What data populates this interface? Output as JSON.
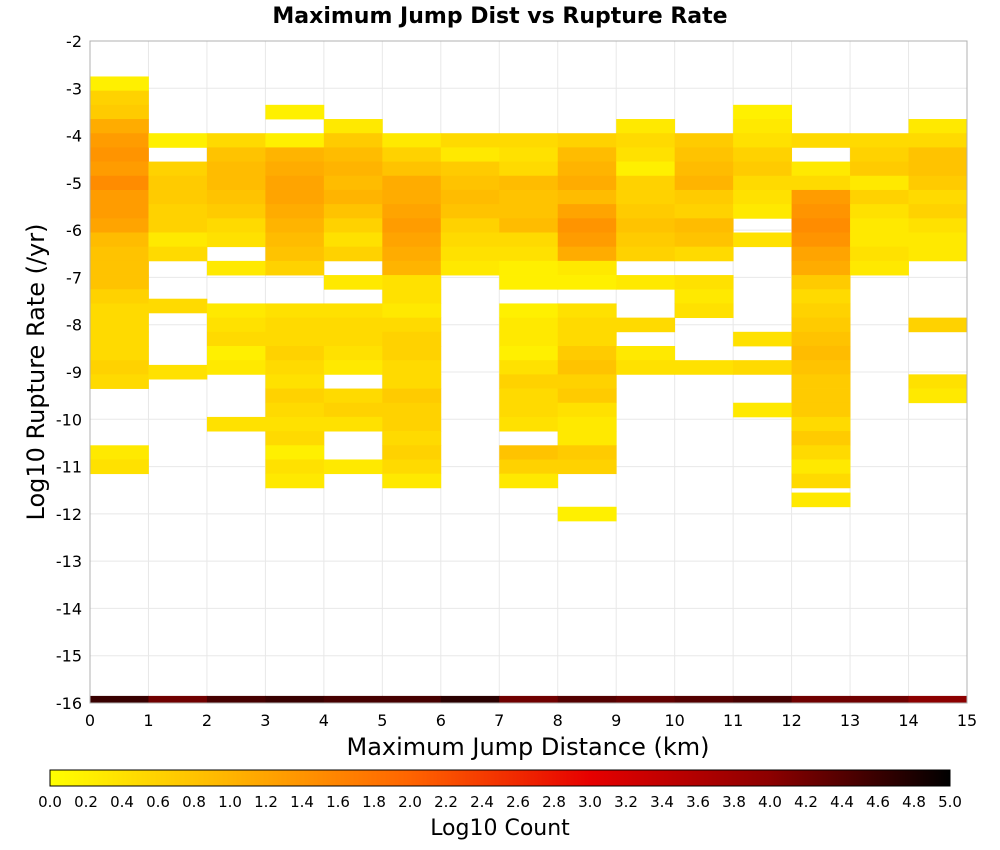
{
  "chart_data": {
    "type": "heatmap",
    "title": "Maximum Jump Dist vs Rupture Rate",
    "xlabel": "Maximum Jump Distance (km)",
    "ylabel": "Log10 Rupture Rate (/yr)",
    "xlim": [
      0,
      15
    ],
    "ylim": [
      -16,
      -2
    ],
    "x_ticks": [
      "0",
      "1",
      "2",
      "3",
      "4",
      "5",
      "6",
      "7",
      "8",
      "9",
      "10",
      "11",
      "12",
      "13",
      "14",
      "15"
    ],
    "y_ticks": [
      "-2",
      "-3",
      "-4",
      "-5",
      "-6",
      "-7",
      "-8",
      "-9",
      "-10",
      "-11",
      "-12",
      "-13",
      "-14",
      "-15",
      "-16"
    ],
    "grid": true,
    "x_bin_width": 1,
    "y_bin_width": 0.3,
    "colorbar": {
      "label": "Log10 Count",
      "range": [
        0,
        5
      ],
      "ticks": [
        "0.0",
        "0.2",
        "0.4",
        "0.6",
        "0.8",
        "1.0",
        "1.2",
        "1.4",
        "1.6",
        "1.8",
        "2.0",
        "2.2",
        "2.4",
        "2.6",
        "2.8",
        "3.0",
        "3.2",
        "3.4",
        "3.6",
        "3.8",
        "4.0",
        "4.2",
        "4.4",
        "4.6",
        "4.8",
        "5.0"
      ],
      "colors": [
        "#ffff00",
        "#ffb400",
        "#ff6400",
        "#e60000",
        "#8c0000",
        "#000000"
      ]
    },
    "bottom_row": {
      "y": -16,
      "values": [
        4.6,
        4.2,
        4.5,
        4.6,
        4.5,
        4.5,
        4.7,
        4.2,
        4.4,
        4.3,
        4.4,
        4.5,
        4.2,
        4.2,
        4.0
      ]
    },
    "cells": [
      [
        0,
        -2.9,
        0.2
      ],
      [
        0,
        -3.2,
        0.6
      ],
      [
        0,
        -3.5,
        0.7
      ],
      [
        0,
        -3.8,
        1.1
      ],
      [
        0,
        -4.1,
        1.3
      ],
      [
        0,
        -4.4,
        1.4
      ],
      [
        0,
        -4.7,
        1.3
      ],
      [
        0,
        -5.0,
        1.5
      ],
      [
        0,
        -5.3,
        1.3
      ],
      [
        0,
        -5.6,
        1.3
      ],
      [
        0,
        -5.9,
        1.2
      ],
      [
        0,
        -6.2,
        0.9
      ],
      [
        0,
        -6.5,
        0.8
      ],
      [
        0,
        -6.8,
        0.8
      ],
      [
        0,
        -7.1,
        0.8
      ],
      [
        0,
        -7.4,
        0.6
      ],
      [
        0,
        -7.7,
        0.5
      ],
      [
        0,
        -8.0,
        0.5
      ],
      [
        0,
        -8.3,
        0.5
      ],
      [
        0,
        -8.6,
        0.5
      ],
      [
        0,
        -8.9,
        0.6
      ],
      [
        0,
        -9.2,
        0.5
      ],
      [
        0,
        -10.7,
        0.3
      ],
      [
        0,
        -11.0,
        0.4
      ],
      [
        1,
        -4.1,
        0.2
      ],
      [
        1,
        -4.7,
        0.6
      ],
      [
        1,
        -5.0,
        0.7
      ],
      [
        1,
        -5.3,
        0.7
      ],
      [
        1,
        -5.6,
        0.6
      ],
      [
        1,
        -5.9,
        0.6
      ],
      [
        1,
        -6.2,
        0.3
      ],
      [
        1,
        -6.5,
        0.5
      ],
      [
        1,
        -7.6,
        0.5
      ],
      [
        1,
        -9.0,
        0.4
      ],
      [
        2,
        -4.1,
        0.5
      ],
      [
        2,
        -4.4,
        0.8
      ],
      [
        2,
        -4.7,
        0.9
      ],
      [
        2,
        -5.0,
        0.9
      ],
      [
        2,
        -5.3,
        0.8
      ],
      [
        2,
        -5.6,
        0.7
      ],
      [
        2,
        -5.9,
        0.5
      ],
      [
        2,
        -6.2,
        0.4
      ],
      [
        2,
        -6.8,
        0.3
      ],
      [
        2,
        -7.7,
        0.3
      ],
      [
        2,
        -8.0,
        0.4
      ],
      [
        2,
        -8.3,
        0.5
      ],
      [
        2,
        -8.6,
        0.2
      ],
      [
        2,
        -8.9,
        0.3
      ],
      [
        2,
        -10.1,
        0.4
      ],
      [
        3,
        -3.5,
        0.2
      ],
      [
        3,
        -4.1,
        0.2
      ],
      [
        3,
        -4.4,
        1.0
      ],
      [
        3,
        -4.7,
        1.1
      ],
      [
        3,
        -5.0,
        1.2
      ],
      [
        3,
        -5.3,
        1.2
      ],
      [
        3,
        -5.6,
        1.1
      ],
      [
        3,
        -5.9,
        1.0
      ],
      [
        3,
        -6.2,
        0.9
      ],
      [
        3,
        -6.5,
        0.8
      ],
      [
        3,
        -6.8,
        0.6
      ],
      [
        3,
        -7.7,
        0.4
      ],
      [
        3,
        -8.0,
        0.5
      ],
      [
        3,
        -8.3,
        0.5
      ],
      [
        3,
        -8.6,
        0.6
      ],
      [
        3,
        -8.9,
        0.5
      ],
      [
        3,
        -9.2,
        0.4
      ],
      [
        3,
        -9.5,
        0.6
      ],
      [
        3,
        -9.8,
        0.5
      ],
      [
        3,
        -10.1,
        0.4
      ],
      [
        3,
        -10.4,
        0.5
      ],
      [
        3,
        -10.7,
        0.2
      ],
      [
        3,
        -11.0,
        0.4
      ],
      [
        3,
        -11.3,
        0.3
      ],
      [
        4,
        -3.8,
        0.3
      ],
      [
        4,
        -4.1,
        0.7
      ],
      [
        4,
        -4.4,
        0.9
      ],
      [
        4,
        -4.7,
        1.0
      ],
      [
        4,
        -5.0,
        0.9
      ],
      [
        4,
        -5.3,
        1.0
      ],
      [
        4,
        -5.6,
        0.8
      ],
      [
        4,
        -5.9,
        0.6
      ],
      [
        4,
        -6.2,
        0.4
      ],
      [
        4,
        -6.5,
        0.6
      ],
      [
        4,
        -7.1,
        0.3
      ],
      [
        4,
        -7.7,
        0.4
      ],
      [
        4,
        -8.0,
        0.5
      ],
      [
        4,
        -8.3,
        0.5
      ],
      [
        4,
        -8.6,
        0.4
      ],
      [
        4,
        -8.9,
        0.3
      ],
      [
        4,
        -9.5,
        0.5
      ],
      [
        4,
        -9.8,
        0.6
      ],
      [
        4,
        -10.1,
        0.4
      ],
      [
        4,
        -11.0,
        0.3
      ],
      [
        5,
        -4.1,
        0.3
      ],
      [
        5,
        -4.4,
        0.6
      ],
      [
        5,
        -4.7,
        0.8
      ],
      [
        5,
        -5.0,
        1.1
      ],
      [
        5,
        -5.3,
        1.1
      ],
      [
        5,
        -5.6,
        1.2
      ],
      [
        5,
        -5.9,
        1.3
      ],
      [
        5,
        -6.2,
        1.2
      ],
      [
        5,
        -6.5,
        1.1
      ],
      [
        5,
        -6.8,
        1.0
      ],
      [
        5,
        -7.1,
        0.4
      ],
      [
        5,
        -7.4,
        0.4
      ],
      [
        5,
        -7.7,
        0.3
      ],
      [
        5,
        -8.0,
        0.5
      ],
      [
        5,
        -8.3,
        0.6
      ],
      [
        5,
        -8.6,
        0.6
      ],
      [
        5,
        -8.9,
        0.5
      ],
      [
        5,
        -9.2,
        0.5
      ],
      [
        5,
        -9.5,
        0.7
      ],
      [
        5,
        -9.8,
        0.6
      ],
      [
        5,
        -10.1,
        0.6
      ],
      [
        5,
        -10.4,
        0.5
      ],
      [
        5,
        -10.7,
        0.6
      ],
      [
        5,
        -11.0,
        0.5
      ],
      [
        5,
        -11.3,
        0.3
      ],
      [
        6,
        -4.1,
        0.5
      ],
      [
        6,
        -4.4,
        0.3
      ],
      [
        6,
        -4.7,
        0.7
      ],
      [
        6,
        -5.0,
        0.8
      ],
      [
        6,
        -5.3,
        0.9
      ],
      [
        6,
        -5.6,
        0.8
      ],
      [
        6,
        -5.9,
        0.6
      ],
      [
        6,
        -6.2,
        0.5
      ],
      [
        6,
        -6.5,
        0.4
      ],
      [
        6,
        -6.8,
        0.3
      ],
      [
        7,
        -4.1,
        0.5
      ],
      [
        7,
        -4.4,
        0.4
      ],
      [
        7,
        -4.7,
        0.5
      ],
      [
        7,
        -5.0,
        0.9
      ],
      [
        7,
        -5.3,
        0.8
      ],
      [
        7,
        -5.6,
        0.8
      ],
      [
        7,
        -5.9,
        0.9
      ],
      [
        7,
        -6.2,
        0.5
      ],
      [
        7,
        -6.5,
        0.4
      ],
      [
        7,
        -6.8,
        0.2
      ],
      [
        7,
        -7.1,
        0.2
      ],
      [
        7,
        -7.7,
        0.2
      ],
      [
        7,
        -8.0,
        0.3
      ],
      [
        7,
        -8.3,
        0.3
      ],
      [
        7,
        -8.6,
        0.2
      ],
      [
        7,
        -8.9,
        0.4
      ],
      [
        7,
        -9.2,
        0.6
      ],
      [
        7,
        -9.5,
        0.5
      ],
      [
        7,
        -9.8,
        0.5
      ],
      [
        7,
        -10.1,
        0.4
      ],
      [
        7,
        -10.7,
        0.8
      ],
      [
        7,
        -11.0,
        0.6
      ],
      [
        7,
        -11.3,
        0.3
      ],
      [
        8,
        -4.1,
        0.6
      ],
      [
        8,
        -4.4,
        0.9
      ],
      [
        8,
        -4.7,
        1.0
      ],
      [
        8,
        -5.0,
        1.1
      ],
      [
        8,
        -5.3,
        0.9
      ],
      [
        8,
        -5.6,
        1.2
      ],
      [
        8,
        -5.9,
        1.4
      ],
      [
        8,
        -6.2,
        1.3
      ],
      [
        8,
        -6.5,
        1.1
      ],
      [
        8,
        -6.8,
        0.3
      ],
      [
        8,
        -7.1,
        0.2
      ],
      [
        8,
        -7.7,
        0.4
      ],
      [
        8,
        -8.0,
        0.5
      ],
      [
        8,
        -8.3,
        0.5
      ],
      [
        8,
        -8.6,
        0.7
      ],
      [
        8,
        -8.9,
        0.8
      ],
      [
        8,
        -9.2,
        0.6
      ],
      [
        8,
        -9.5,
        0.7
      ],
      [
        8,
        -9.8,
        0.4
      ],
      [
        8,
        -10.1,
        0.3
      ],
      [
        8,
        -10.4,
        0.3
      ],
      [
        8,
        -10.7,
        0.7
      ],
      [
        8,
        -11.0,
        0.6
      ],
      [
        8,
        -12.0,
        0.2
      ],
      [
        9,
        -3.8,
        0.3
      ],
      [
        9,
        -4.1,
        0.5
      ],
      [
        9,
        -4.4,
        0.4
      ],
      [
        9,
        -4.7,
        0.2
      ],
      [
        9,
        -5.0,
        0.6
      ],
      [
        9,
        -5.3,
        0.6
      ],
      [
        9,
        -5.6,
        0.7
      ],
      [
        9,
        -5.9,
        0.8
      ],
      [
        9,
        -6.2,
        0.7
      ],
      [
        9,
        -6.5,
        0.6
      ],
      [
        9,
        -7.1,
        0.3
      ],
      [
        9,
        -8.0,
        0.5
      ],
      [
        9,
        -8.6,
        0.3
      ],
      [
        9,
        -8.9,
        0.4
      ],
      [
        10,
        -4.1,
        0.7
      ],
      [
        10,
        -4.4,
        0.8
      ],
      [
        10,
        -4.7,
        0.9
      ],
      [
        10,
        -5.0,
        1.0
      ],
      [
        10,
        -5.3,
        0.7
      ],
      [
        10,
        -5.6,
        0.6
      ],
      [
        10,
        -5.9,
        0.9
      ],
      [
        10,
        -6.2,
        0.8
      ],
      [
        10,
        -6.5,
        0.5
      ],
      [
        10,
        -7.1,
        0.4
      ],
      [
        10,
        -7.4,
        0.3
      ],
      [
        10,
        -7.7,
        0.4
      ],
      [
        10,
        -8.9,
        0.4
      ],
      [
        11,
        -3.5,
        0.2
      ],
      [
        11,
        -3.8,
        0.3
      ],
      [
        11,
        -4.1,
        0.4
      ],
      [
        11,
        -4.4,
        0.6
      ],
      [
        11,
        -4.7,
        0.7
      ],
      [
        11,
        -5.0,
        0.5
      ],
      [
        11,
        -5.3,
        0.4
      ],
      [
        11,
        -5.6,
        0.3
      ],
      [
        11,
        -6.2,
        0.4
      ],
      [
        11,
        -8.3,
        0.4
      ],
      [
        11,
        -8.9,
        0.5
      ],
      [
        11,
        -9.8,
        0.3
      ],
      [
        12,
        -4.1,
        0.5
      ],
      [
        12,
        -4.7,
        0.3
      ],
      [
        12,
        -5.0,
        0.5
      ],
      [
        12,
        -5.3,
        1.3
      ],
      [
        12,
        -5.6,
        1.4
      ],
      [
        12,
        -5.9,
        1.5
      ],
      [
        12,
        -6.2,
        1.4
      ],
      [
        12,
        -6.5,
        1.2
      ],
      [
        12,
        -6.8,
        1.1
      ],
      [
        12,
        -7.1,
        0.7
      ],
      [
        12,
        -7.4,
        0.5
      ],
      [
        12,
        -7.7,
        0.6
      ],
      [
        12,
        -8.0,
        0.7
      ],
      [
        12,
        -8.3,
        0.8
      ],
      [
        12,
        -8.6,
        0.9
      ],
      [
        12,
        -8.9,
        0.8
      ],
      [
        12,
        -9.2,
        0.7
      ],
      [
        12,
        -9.5,
        0.7
      ],
      [
        12,
        -9.8,
        0.7
      ],
      [
        12,
        -10.1,
        0.5
      ],
      [
        12,
        -10.4,
        0.7
      ],
      [
        12,
        -10.7,
        0.5
      ],
      [
        12,
        -11.0,
        0.3
      ],
      [
        12,
        -11.3,
        0.5
      ],
      [
        12,
        -11.7,
        0.3
      ],
      [
        13,
        -4.1,
        0.5
      ],
      [
        13,
        -4.4,
        0.6
      ],
      [
        13,
        -4.7,
        0.7
      ],
      [
        13,
        -5.0,
        0.3
      ],
      [
        13,
        -5.3,
        0.6
      ],
      [
        13,
        -5.6,
        0.4
      ],
      [
        13,
        -5.9,
        0.3
      ],
      [
        13,
        -6.2,
        0.3
      ],
      [
        13,
        -6.5,
        0.4
      ],
      [
        13,
        -6.8,
        0.3
      ],
      [
        14,
        -3.8,
        0.3
      ],
      [
        14,
        -4.1,
        0.5
      ],
      [
        14,
        -4.4,
        0.8
      ],
      [
        14,
        -4.7,
        0.8
      ],
      [
        14,
        -5.0,
        0.7
      ],
      [
        14,
        -5.3,
        0.5
      ],
      [
        14,
        -5.6,
        0.6
      ],
      [
        14,
        -5.9,
        0.4
      ],
      [
        14,
        -6.2,
        0.3
      ],
      [
        14,
        -6.5,
        0.3
      ],
      [
        14,
        -8.0,
        0.6
      ],
      [
        14,
        -9.2,
        0.4
      ],
      [
        14,
        -9.5,
        0.3
      ]
    ]
  }
}
